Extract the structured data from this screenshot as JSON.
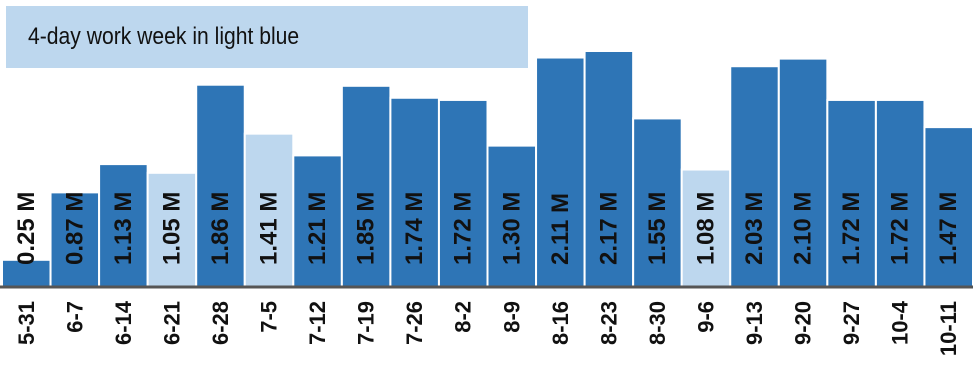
{
  "legend": {
    "text": "4-day work week in light blue"
  },
  "colors": {
    "regular": "#2e75b6",
    "four_day": "#bdd7ee",
    "axis": "#555555",
    "bar_edge": "#ffffff"
  },
  "chart_data": {
    "type": "bar",
    "categories": [
      "5-31",
      "6-7",
      "6-14",
      "6-21",
      "6-28",
      "7-5",
      "7-12",
      "7-19",
      "7-26",
      "8-2",
      "8-9",
      "8-16",
      "8-23",
      "8-30",
      "9-6",
      "9-13",
      "9-20",
      "9-27",
      "10-4",
      "10-11"
    ],
    "values": [
      0.25,
      0.87,
      1.13,
      1.05,
      1.86,
      1.41,
      1.21,
      1.85,
      1.74,
      1.72,
      1.3,
      2.11,
      2.17,
      1.55,
      1.08,
      2.03,
      2.1,
      1.72,
      1.72,
      1.47
    ],
    "labels": [
      "0.25 M",
      "0.87 M",
      "1.13 M",
      "1.05 M",
      "1.86 M",
      "1.41 M",
      "1.21 M",
      "1.85 M",
      "1.74 M",
      "1.72 M",
      "1.30 M",
      "2.11 M",
      "2.17 M",
      "1.55 M",
      "1.08 M",
      "2.03 M",
      "2.10 M",
      "1.72 M",
      "1.72 M",
      "1.47 M"
    ],
    "four_day_week": [
      false,
      false,
      false,
      true,
      false,
      true,
      false,
      false,
      false,
      false,
      false,
      false,
      false,
      false,
      true,
      false,
      false,
      false,
      false,
      false
    ],
    "ylim": [
      0,
      2.2
    ],
    "grid": false,
    "legend_position": "top-left"
  }
}
